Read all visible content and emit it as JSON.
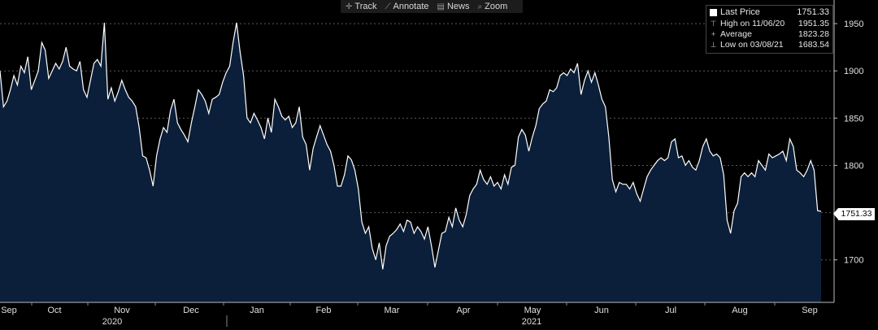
{
  "toolbar": [
    {
      "icon": "crosshair-icon",
      "glyph": "✛",
      "label": "Track"
    },
    {
      "icon": "pencil-icon",
      "glyph": "⟋",
      "label": "Annotate"
    },
    {
      "icon": "news-icon",
      "glyph": "▤",
      "label": "News"
    },
    {
      "icon": "zoom-icon",
      "glyph": "⌕",
      "label": "Zoom"
    }
  ],
  "legend": {
    "last_price_label": "Last Price",
    "last_price_value": "1751.33",
    "high_label": "High on 11/06/20",
    "high_value": "1951.35",
    "average_label": "Average",
    "average_value": "1823.28",
    "low_label": "Low on 03/08/21",
    "low_value": "1683.54"
  },
  "last_price_tag": "1751.33",
  "colors": {
    "background": "#000000",
    "area_fill": "#0b1f3a",
    "line": "#ffffff",
    "grid": "#5a5a5a"
  },
  "chart_data": {
    "type": "area",
    "title": "",
    "ylim": [
      1655,
      1975
    ],
    "yticks": [
      1700,
      1750,
      1800,
      1850,
      1900,
      1950
    ],
    "grid": true,
    "legend_position": "top-right",
    "x_month_labels": [
      "Sep",
      "Oct",
      "Nov",
      "Dec",
      "Jan",
      "Feb",
      "Mar",
      "Apr",
      "May",
      "Jun",
      "Jul",
      "Aug",
      "Sep"
    ],
    "x_year_labels": [
      "2020",
      "2021"
    ],
    "series": [
      {
        "name": "Last Price",
        "values": [
          1900,
          1862,
          1868,
          1880,
          1895,
          1885,
          1905,
          1898,
          1915,
          1880,
          1890,
          1900,
          1930,
          1922,
          1892,
          1900,
          1908,
          1902,
          1910,
          1925,
          1905,
          1902,
          1900,
          1910,
          1880,
          1872,
          1890,
          1908,
          1912,
          1905,
          1951,
          1870,
          1882,
          1868,
          1878,
          1890,
          1880,
          1872,
          1868,
          1862,
          1840,
          1810,
          1808,
          1795,
          1778,
          1810,
          1828,
          1840,
          1835,
          1858,
          1870,
          1845,
          1838,
          1832,
          1825,
          1845,
          1862,
          1880,
          1875,
          1868,
          1855,
          1870,
          1872,
          1875,
          1888,
          1898,
          1905,
          1930,
          1951,
          1920,
          1895,
          1850,
          1845,
          1855,
          1848,
          1840,
          1828,
          1850,
          1835,
          1870,
          1862,
          1852,
          1848,
          1852,
          1840,
          1845,
          1862,
          1830,
          1822,
          1795,
          1818,
          1830,
          1842,
          1832,
          1822,
          1815,
          1800,
          1778,
          1778,
          1790,
          1810,
          1806,
          1795,
          1775,
          1740,
          1728,
          1735,
          1712,
          1700,
          1718,
          1690,
          1715,
          1725,
          1728,
          1732,
          1738,
          1730,
          1742,
          1740,
          1728,
          1735,
          1730,
          1722,
          1735,
          1715,
          1692,
          1710,
          1728,
          1730,
          1745,
          1735,
          1755,
          1742,
          1735,
          1748,
          1768,
          1775,
          1780,
          1795,
          1785,
          1780,
          1788,
          1778,
          1782,
          1775,
          1790,
          1780,
          1798,
          1800,
          1830,
          1838,
          1832,
          1815,
          1830,
          1842,
          1860,
          1865,
          1868,
          1880,
          1878,
          1882,
          1895,
          1898,
          1895,
          1902,
          1898,
          1908,
          1875,
          1890,
          1900,
          1888,
          1898,
          1885,
          1870,
          1862,
          1830,
          1785,
          1772,
          1782,
          1780,
          1780,
          1775,
          1782,
          1770,
          1762,
          1775,
          1788,
          1795,
          1800,
          1805,
          1808,
          1805,
          1808,
          1825,
          1828,
          1808,
          1810,
          1800,
          1805,
          1798,
          1795,
          1805,
          1820,
          1828,
          1815,
          1810,
          1812,
          1808,
          1790,
          1742,
          1728,
          1752,
          1760,
          1788,
          1792,
          1788,
          1792,
          1788,
          1805,
          1800,
          1795,
          1812,
          1808,
          1810,
          1812,
          1815,
          1805,
          1828,
          1820,
          1795,
          1792,
          1788,
          1795,
          1805,
          1795,
          1752,
          1751.33
        ]
      }
    ]
  }
}
